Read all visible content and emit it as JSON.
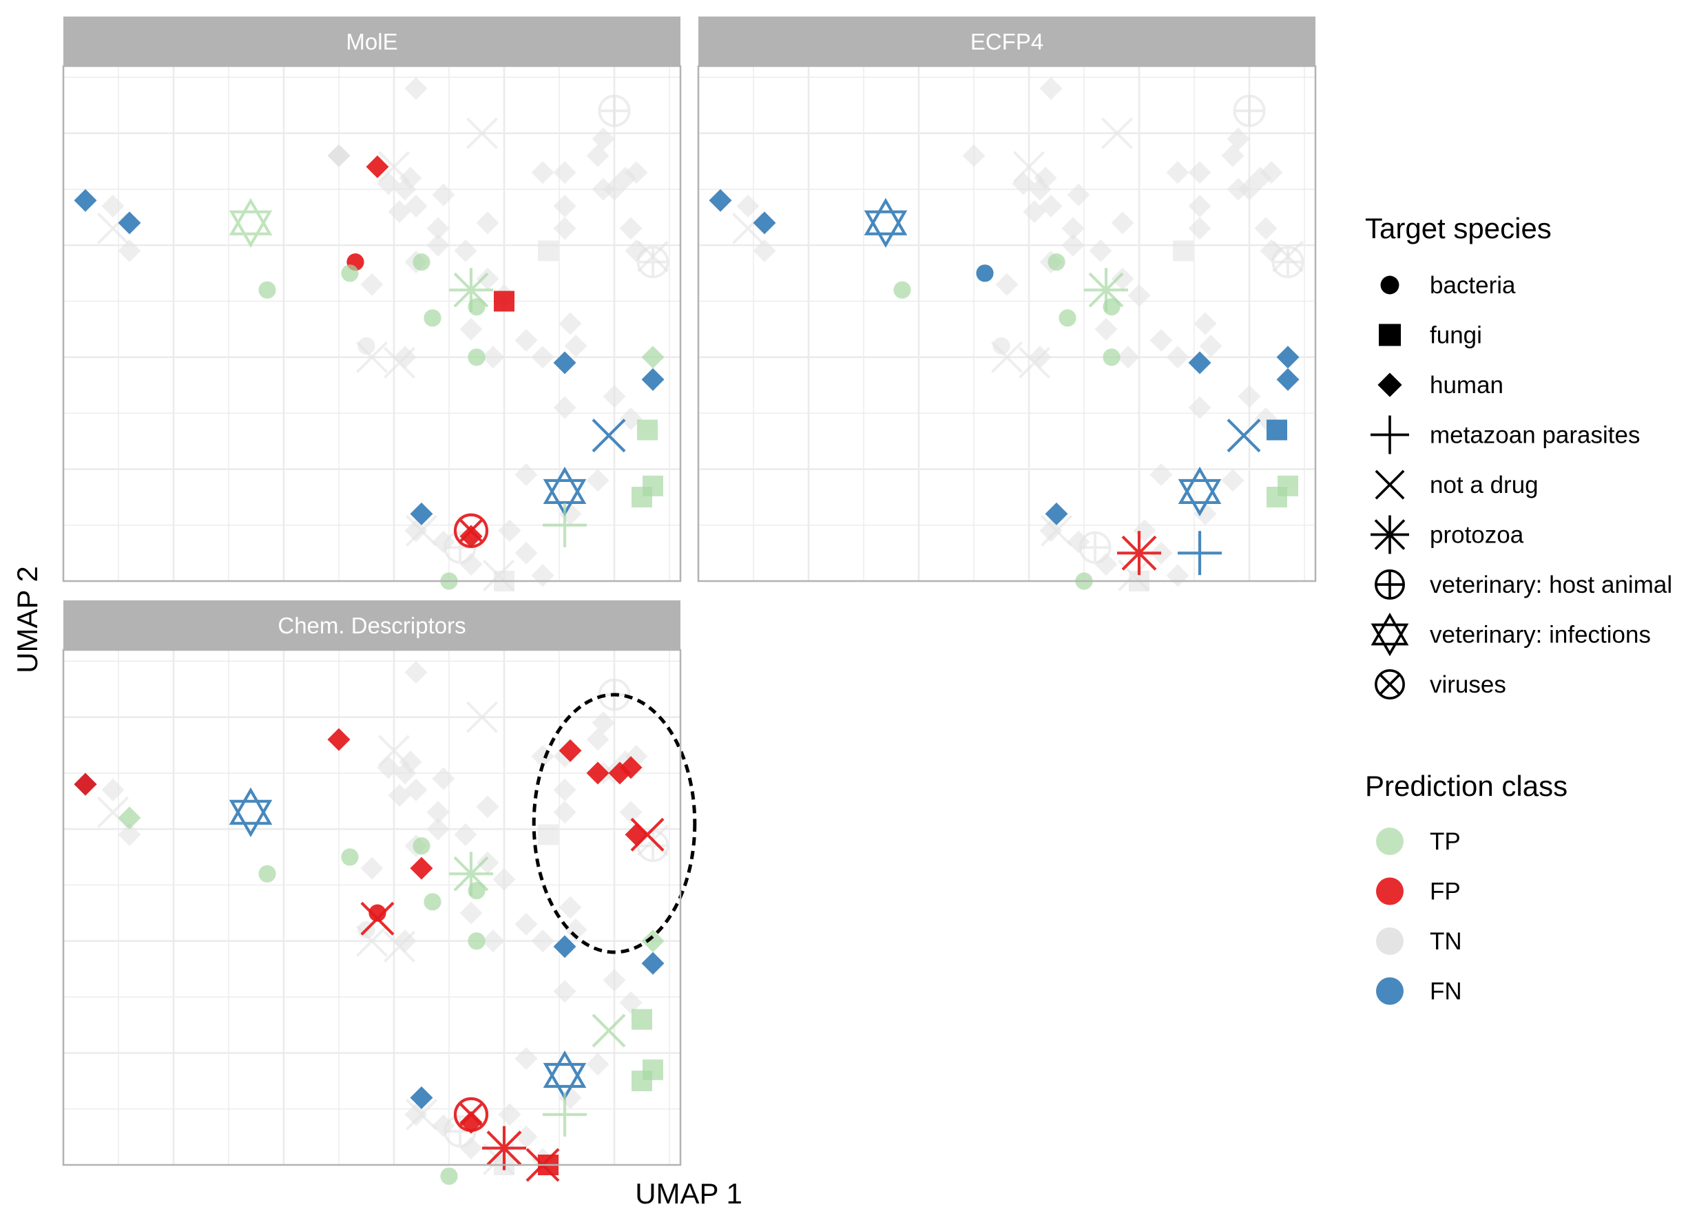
{
  "chart_data": {
    "type": "scatter",
    "xlabel": "UMAP 1",
    "ylabel": "UMAP 2",
    "grid": true,
    "xlim": [
      0,
      5.6
    ],
    "ylim": [
      0,
      4.6
    ],
    "colors": {
      "TP": "#a6d9a2",
      "FP": "#e41a1c",
      "TN": "#e2e2e2",
      "FN": "#377eb8",
      "strip": "#b3b3b3",
      "grid": "#ebebeb",
      "panel_border": "#b3b3b3"
    },
    "legend": {
      "placement": "right",
      "shape_title": "Target species",
      "shape_items": [
        {
          "label": "bacteria",
          "shape": "circle"
        },
        {
          "label": "fungi",
          "shape": "square"
        },
        {
          "label": "human",
          "shape": "diamond"
        },
        {
          "label": "metazoan parasites",
          "shape": "plus"
        },
        {
          "label": "not a drug",
          "shape": "cross"
        },
        {
          "label": "protozoa",
          "shape": "asterisk"
        },
        {
          "label": "veterinary: host animal",
          "shape": "circle-plus"
        },
        {
          "label": "veterinary: infections",
          "shape": "star-of-david"
        },
        {
          "label": "viruses",
          "shape": "circle-cross"
        }
      ],
      "color_title": "Prediction class",
      "color_items": [
        {
          "label": "TP",
          "class": "TP"
        },
        {
          "label": "FP",
          "class": "FP"
        },
        {
          "label": "TN",
          "class": "TN"
        },
        {
          "label": "FN",
          "class": "FN"
        }
      ]
    },
    "base_points": [
      {
        "x": 3.2,
        "y": 4.4,
        "shape": "diamond"
      },
      {
        "x": 3.8,
        "y": 4.0,
        "shape": "cross"
      },
      {
        "x": 5.0,
        "y": 4.2,
        "shape": "circle-plus"
      },
      {
        "x": 4.35,
        "y": 3.65,
        "shape": "diamond"
      },
      {
        "x": 4.55,
        "y": 3.65,
        "shape": "diamond"
      },
      {
        "x": 4.9,
        "y": 3.95,
        "shape": "diamond"
      },
      {
        "x": 4.85,
        "y": 3.8,
        "shape": "diamond"
      },
      {
        "x": 5.1,
        "y": 3.6,
        "shape": "diamond"
      },
      {
        "x": 5.2,
        "y": 3.65,
        "shape": "diamond"
      },
      {
        "x": 4.55,
        "y": 3.35,
        "shape": "diamond"
      },
      {
        "x": 4.55,
        "y": 3.15,
        "shape": "diamond"
      },
      {
        "x": 4.9,
        "y": 3.5,
        "shape": "diamond"
      },
      {
        "x": 5.0,
        "y": 3.5,
        "shape": "diamond"
      },
      {
        "x": 5.15,
        "y": 3.15,
        "shape": "diamond"
      },
      {
        "x": 5.2,
        "y": 2.95,
        "shape": "diamond"
      },
      {
        "x": 5.35,
        "y": 2.9,
        "shape": "cross"
      },
      {
        "x": 5.35,
        "y": 2.85,
        "shape": "circle-plus"
      },
      {
        "x": 4.4,
        "y": 2.95,
        "shape": "square"
      },
      {
        "x": 3.65,
        "y": 2.95,
        "shape": "diamond"
      },
      {
        "x": 3.85,
        "y": 2.7,
        "shape": "diamond"
      },
      {
        "x": 4.0,
        "y": 2.55,
        "shape": "diamond"
      },
      {
        "x": 3.85,
        "y": 3.2,
        "shape": "diamond"
      },
      {
        "x": 3.4,
        "y": 3.15,
        "shape": "diamond"
      },
      {
        "x": 3.2,
        "y": 3.35,
        "shape": "diamond"
      },
      {
        "x": 3.45,
        "y": 3.45,
        "shape": "diamond"
      },
      {
        "x": 3.4,
        "y": 3.0,
        "shape": "diamond"
      },
      {
        "x": 3.2,
        "y": 2.85,
        "shape": "diamond"
      },
      {
        "x": 3.05,
        "y": 3.3,
        "shape": "diamond"
      },
      {
        "x": 2.95,
        "y": 3.55,
        "shape": "diamond"
      },
      {
        "x": 3.1,
        "y": 3.5,
        "shape": "diamond"
      },
      {
        "x": 3.0,
        "y": 3.7,
        "shape": "cross"
      },
      {
        "x": 3.15,
        "y": 3.6,
        "shape": "diamond"
      },
      {
        "x": 2.5,
        "y": 3.8,
        "shape": "diamond"
      },
      {
        "x": 2.8,
        "y": 2.65,
        "shape": "diamond"
      },
      {
        "x": 2.75,
        "y": 2.1,
        "shape": "circle"
      },
      {
        "x": 2.8,
        "y": 2.0,
        "shape": "cross"
      },
      {
        "x": 3.05,
        "y": 1.95,
        "shape": "cross"
      },
      {
        "x": 3.1,
        "y": 2.0,
        "shape": "diamond"
      },
      {
        "x": 3.7,
        "y": 2.25,
        "shape": "diamond"
      },
      {
        "x": 3.9,
        "y": 2.0,
        "shape": "diamond"
      },
      {
        "x": 4.2,
        "y": 2.15,
        "shape": "diamond"
      },
      {
        "x": 4.35,
        "y": 2.0,
        "shape": "diamond"
      },
      {
        "x": 4.6,
        "y": 2.3,
        "shape": "diamond"
      },
      {
        "x": 4.65,
        "y": 2.1,
        "shape": "diamond"
      },
      {
        "x": 4.55,
        "y": 1.55,
        "shape": "diamond"
      },
      {
        "x": 5.0,
        "y": 1.65,
        "shape": "diamond"
      },
      {
        "x": 5.15,
        "y": 1.45,
        "shape": "diamond"
      },
      {
        "x": 4.2,
        "y": 0.95,
        "shape": "diamond"
      },
      {
        "x": 4.6,
        "y": 0.6,
        "shape": "diamond"
      },
      {
        "x": 4.85,
        "y": 0.9,
        "shape": "diamond"
      },
      {
        "x": 3.2,
        "y": 0.45,
        "shape": "diamond"
      },
      {
        "x": 3.6,
        "y": 0.3,
        "shape": "circle-plus"
      },
      {
        "x": 3.45,
        "y": 0.35,
        "shape": "diamond"
      },
      {
        "x": 3.7,
        "y": 0.15,
        "shape": "diamond"
      },
      {
        "x": 4.0,
        "y": 0.0,
        "shape": "square"
      },
      {
        "x": 4.35,
        "y": 0.05,
        "shape": "diamond"
      },
      {
        "x": 4.05,
        "y": 0.45,
        "shape": "diamond"
      },
      {
        "x": 4.2,
        "y": 0.25,
        "shape": "diamond"
      },
      {
        "x": 0.45,
        "y": 3.35,
        "shape": "diamond"
      },
      {
        "x": 0.45,
        "y": 3.15,
        "shape": "cross"
      },
      {
        "x": 0.6,
        "y": 2.95,
        "shape": "diamond"
      },
      {
        "x": 3.25,
        "y": 0.45,
        "shape": "cross"
      },
      {
        "x": 3.95,
        "y": 0.05,
        "shape": "cross"
      }
    ],
    "panels": [
      {
        "title": "MolE",
        "points": [
          {
            "x": 0.2,
            "y": 3.4,
            "shape": "diamond",
            "class": "FN"
          },
          {
            "x": 0.6,
            "y": 3.2,
            "shape": "diamond",
            "class": "FN"
          },
          {
            "x": 1.7,
            "y": 3.2,
            "shape": "star-of-david",
            "class": "TP"
          },
          {
            "x": 1.85,
            "y": 2.6,
            "shape": "circle",
            "class": "TP"
          },
          {
            "x": 2.5,
            "y": 3.8,
            "shape": "diamond",
            "class": "TN"
          },
          {
            "x": 2.85,
            "y": 3.7,
            "shape": "diamond",
            "class": "FP"
          },
          {
            "x": 2.65,
            "y": 2.85,
            "shape": "circle",
            "class": "FP"
          },
          {
            "x": 2.6,
            "y": 2.75,
            "shape": "circle",
            "class": "TP"
          },
          {
            "x": 3.25,
            "y": 2.85,
            "shape": "circle",
            "class": "TP"
          },
          {
            "x": 3.35,
            "y": 2.35,
            "shape": "circle",
            "class": "TP"
          },
          {
            "x": 3.7,
            "y": 2.6,
            "shape": "asterisk",
            "class": "TP"
          },
          {
            "x": 3.75,
            "y": 2.45,
            "shape": "circle",
            "class": "TP"
          },
          {
            "x": 4.0,
            "y": 2.5,
            "shape": "square",
            "class": "FP"
          },
          {
            "x": 3.75,
            "y": 2.0,
            "shape": "circle",
            "class": "TP"
          },
          {
            "x": 4.55,
            "y": 1.95,
            "shape": "diamond",
            "class": "FN"
          },
          {
            "x": 5.35,
            "y": 2.0,
            "shape": "diamond",
            "class": "TP"
          },
          {
            "x": 5.35,
            "y": 1.8,
            "shape": "diamond",
            "class": "FN"
          },
          {
            "x": 4.95,
            "y": 1.3,
            "shape": "cross",
            "class": "FN"
          },
          {
            "x": 5.3,
            "y": 1.35,
            "shape": "square",
            "class": "TP"
          },
          {
            "x": 4.55,
            "y": 0.8,
            "shape": "star-of-david",
            "class": "FN"
          },
          {
            "x": 5.35,
            "y": 0.85,
            "shape": "square",
            "class": "TP"
          },
          {
            "x": 5.25,
            "y": 0.75,
            "shape": "square",
            "class": "TP"
          },
          {
            "x": 4.55,
            "y": 0.5,
            "shape": "plus",
            "class": "TP"
          },
          {
            "x": 3.25,
            "y": 0.6,
            "shape": "diamond",
            "class": "FN"
          },
          {
            "x": 3.7,
            "y": 0.45,
            "shape": "circle-cross",
            "class": "FP"
          },
          {
            "x": 3.7,
            "y": 0.4,
            "shape": "diamond",
            "class": "FP"
          },
          {
            "x": 3.5,
            "y": 0.0,
            "shape": "circle",
            "class": "TP"
          }
        ]
      },
      {
        "title": "ECFP4",
        "points": [
          {
            "x": 0.2,
            "y": 3.4,
            "shape": "diamond",
            "class": "FN"
          },
          {
            "x": 0.6,
            "y": 3.2,
            "shape": "diamond",
            "class": "FN"
          },
          {
            "x": 1.7,
            "y": 3.2,
            "shape": "star-of-david",
            "class": "FN"
          },
          {
            "x": 1.85,
            "y": 2.6,
            "shape": "circle",
            "class": "TP"
          },
          {
            "x": 2.6,
            "y": 2.75,
            "shape": "circle",
            "class": "FN"
          },
          {
            "x": 3.25,
            "y": 2.85,
            "shape": "circle",
            "class": "TP"
          },
          {
            "x": 3.35,
            "y": 2.35,
            "shape": "circle",
            "class": "TP"
          },
          {
            "x": 3.7,
            "y": 2.6,
            "shape": "asterisk",
            "class": "TP"
          },
          {
            "x": 3.75,
            "y": 2.45,
            "shape": "circle",
            "class": "TP"
          },
          {
            "x": 3.75,
            "y": 2.0,
            "shape": "circle",
            "class": "TP"
          },
          {
            "x": 4.55,
            "y": 1.95,
            "shape": "diamond",
            "class": "FN"
          },
          {
            "x": 5.35,
            "y": 2.0,
            "shape": "diamond",
            "class": "FN"
          },
          {
            "x": 5.35,
            "y": 1.8,
            "shape": "diamond",
            "class": "FN"
          },
          {
            "x": 4.95,
            "y": 1.3,
            "shape": "cross",
            "class": "FN"
          },
          {
            "x": 5.25,
            "y": 1.35,
            "shape": "square",
            "class": "FN"
          },
          {
            "x": 4.55,
            "y": 0.8,
            "shape": "star-of-david",
            "class": "FN"
          },
          {
            "x": 5.35,
            "y": 0.85,
            "shape": "square",
            "class": "TP"
          },
          {
            "x": 5.25,
            "y": 0.75,
            "shape": "square",
            "class": "TP"
          },
          {
            "x": 4.55,
            "y": 0.25,
            "shape": "plus",
            "class": "FN"
          },
          {
            "x": 3.25,
            "y": 0.6,
            "shape": "diamond",
            "class": "FN"
          },
          {
            "x": 4.0,
            "y": 0.25,
            "shape": "asterisk",
            "class": "FP"
          },
          {
            "x": 3.5,
            "y": 0.0,
            "shape": "circle",
            "class": "TP"
          }
        ]
      },
      {
        "title": "Chem. Descriptors",
        "highlight_ellipse": {
          "cx": 5.0,
          "cy": 3.05,
          "rx": 0.73,
          "ry": 1.15
        },
        "points": [
          {
            "x": 0.2,
            "y": 3.4,
            "shape": "diamond",
            "class": "FN"
          },
          {
            "x": 0.2,
            "y": 3.4,
            "shape": "diamond",
            "class": "FP"
          },
          {
            "x": 0.6,
            "y": 3.1,
            "shape": "diamond",
            "class": "TP"
          },
          {
            "x": 1.7,
            "y": 3.15,
            "shape": "star-of-david",
            "class": "FN"
          },
          {
            "x": 1.85,
            "y": 2.6,
            "shape": "circle",
            "class": "TP"
          },
          {
            "x": 2.5,
            "y": 3.8,
            "shape": "diamond",
            "class": "FP"
          },
          {
            "x": 2.6,
            "y": 2.75,
            "shape": "circle",
            "class": "TP"
          },
          {
            "x": 3.25,
            "y": 2.85,
            "shape": "circle",
            "class": "TP"
          },
          {
            "x": 3.25,
            "y": 2.65,
            "shape": "diamond",
            "class": "FP"
          },
          {
            "x": 2.85,
            "y": 2.25,
            "shape": "circle",
            "class": "FP"
          },
          {
            "x": 2.85,
            "y": 2.2,
            "shape": "cross",
            "class": "FP"
          },
          {
            "x": 3.35,
            "y": 2.35,
            "shape": "circle",
            "class": "TP"
          },
          {
            "x": 3.7,
            "y": 2.6,
            "shape": "asterisk",
            "class": "TP"
          },
          {
            "x": 3.75,
            "y": 2.45,
            "shape": "circle",
            "class": "TP"
          },
          {
            "x": 3.75,
            "y": 2.0,
            "shape": "circle",
            "class": "TP"
          },
          {
            "x": 4.6,
            "y": 3.7,
            "shape": "diamond",
            "class": "FP"
          },
          {
            "x": 4.85,
            "y": 3.5,
            "shape": "diamond",
            "class": "FP"
          },
          {
            "x": 5.05,
            "y": 3.5,
            "shape": "diamond",
            "class": "FP"
          },
          {
            "x": 5.15,
            "y": 3.55,
            "shape": "diamond",
            "class": "FP"
          },
          {
            "x": 5.2,
            "y": 2.95,
            "shape": "diamond",
            "class": "FP"
          },
          {
            "x": 5.3,
            "y": 2.95,
            "shape": "cross",
            "class": "FP"
          },
          {
            "x": 4.55,
            "y": 1.95,
            "shape": "diamond",
            "class": "FN"
          },
          {
            "x": 5.35,
            "y": 2.0,
            "shape": "diamond",
            "class": "TP"
          },
          {
            "x": 5.35,
            "y": 1.8,
            "shape": "diamond",
            "class": "FN"
          },
          {
            "x": 4.95,
            "y": 1.2,
            "shape": "cross",
            "class": "TP"
          },
          {
            "x": 5.25,
            "y": 1.3,
            "shape": "square",
            "class": "TP"
          },
          {
            "x": 4.55,
            "y": 0.8,
            "shape": "star-of-david",
            "class": "FN"
          },
          {
            "x": 5.35,
            "y": 0.85,
            "shape": "square",
            "class": "TP"
          },
          {
            "x": 5.25,
            "y": 0.75,
            "shape": "square",
            "class": "TP"
          },
          {
            "x": 4.55,
            "y": 0.45,
            "shape": "plus",
            "class": "TP"
          },
          {
            "x": 3.25,
            "y": 0.6,
            "shape": "diamond",
            "class": "FN"
          },
          {
            "x": 3.7,
            "y": 0.45,
            "shape": "circle-cross",
            "class": "FP"
          },
          {
            "x": 3.7,
            "y": 0.38,
            "shape": "diamond",
            "class": "FP"
          },
          {
            "x": 4.0,
            "y": 0.15,
            "shape": "asterisk",
            "class": "FP"
          },
          {
            "x": 4.4,
            "y": 0.0,
            "shape": "square",
            "class": "FP"
          },
          {
            "x": 4.35,
            "y": 0.0,
            "shape": "cross",
            "class": "FP"
          },
          {
            "x": 3.5,
            "y": -0.1,
            "shape": "circle",
            "class": "TP"
          }
        ]
      }
    ]
  }
}
